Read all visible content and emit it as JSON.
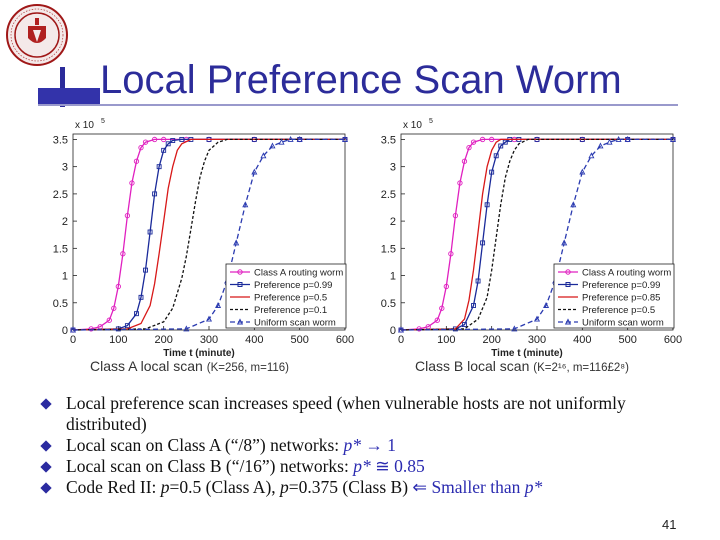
{
  "slide": {
    "title": "Local Preference Scan Worm",
    "page_number": "41",
    "captions": [
      {
        "main": "Class A local scan ",
        "small": "(K=256, m=116)"
      },
      {
        "main": "Class B local scan ",
        "small": "(K=2¹⁶, m=116£2⁸)"
      }
    ],
    "bullets": [
      [
        {
          "text": "Local preference scan increases speed (when vulnerable hosts are not uniformly distributed)"
        }
      ],
      [
        {
          "text": "Local scan on Class A (“/8”) networks: "
        },
        {
          "text": "p* ",
          "style": "blue-italic"
        },
        {
          "text": "→ 1",
          "style": "blue"
        }
      ],
      [
        {
          "text": "Local scan on Class B (“/16”) networks:  "
        },
        {
          "text": "p* ",
          "style": "blue-italic"
        },
        {
          "text": "≅  0.85",
          "style": "blue"
        }
      ],
      [
        {
          "text": "Code Red II: "
        },
        {
          "text": "p",
          "style": "italic"
        },
        {
          "text": "=0.5 (Class A), "
        },
        {
          "text": "p",
          "style": "italic"
        },
        {
          "text": "=0.375 (Class B)  "
        },
        {
          "text": "⇐ Smaller than ",
          "style": "blue"
        },
        {
          "text": "p*",
          "style": "blue-italic"
        }
      ]
    ]
  },
  "chart_data": [
    {
      "type": "line",
      "xlabel": "Time t (minute)",
      "y_multiplier_label": "x 10",
      "y_multiplier_exp": "5",
      "xlim": [
        0,
        600
      ],
      "ylim": [
        0,
        3.6
      ],
      "xticks": [
        0,
        100,
        200,
        300,
        400,
        500,
        600
      ],
      "yticks": [
        "0",
        "0.5",
        "1",
        "1.5",
        "2",
        "2.5",
        "3",
        "3.5"
      ],
      "ytick_values": [
        0,
        0.5,
        1,
        1.5,
        2,
        2.5,
        3,
        3.5
      ],
      "legend_position": "lower-right",
      "series": [
        {
          "name": "Class A routing worm",
          "color": "#e020c0",
          "marker": "circle",
          "dash": "",
          "x": [
            0,
            40,
            60,
            80,
            90,
            100,
            110,
            120,
            130,
            140,
            150,
            160,
            180,
            200,
            250,
            300,
            400,
            500,
            600
          ],
          "y": [
            0,
            0.02,
            0.06,
            0.18,
            0.4,
            0.8,
            1.4,
            2.1,
            2.7,
            3.1,
            3.35,
            3.45,
            3.5,
            3.5,
            3.5,
            3.5,
            3.5,
            3.5,
            3.5
          ]
        },
        {
          "name": "Preference p=0.99",
          "color": "#1a2a9a",
          "marker": "square",
          "dash": "",
          "x": [
            0,
            100,
            120,
            140,
            150,
            160,
            170,
            180,
            190,
            200,
            210,
            220,
            240,
            260,
            300,
            400,
            500,
            600
          ],
          "y": [
            0,
            0.02,
            0.08,
            0.3,
            0.6,
            1.1,
            1.8,
            2.5,
            3.0,
            3.3,
            3.42,
            3.48,
            3.5,
            3.5,
            3.5,
            3.5,
            3.5,
            3.5
          ]
        },
        {
          "name": "Preference p=0.5",
          "color": "#d81818",
          "marker": "",
          "dash": "",
          "x": [
            0,
            120,
            150,
            170,
            180,
            190,
            200,
            210,
            220,
            230,
            240,
            260,
            300,
            400,
            500,
            600
          ],
          "y": [
            0,
            0.02,
            0.12,
            0.45,
            0.85,
            1.4,
            2.0,
            2.6,
            3.0,
            3.3,
            3.42,
            3.5,
            3.5,
            3.5,
            3.5,
            3.5
          ]
        },
        {
          "name": "Preference p=0.1",
          "color": "#111111",
          "marker": "",
          "dash": "3,2",
          "x": [
            0,
            160,
            200,
            220,
            240,
            250,
            260,
            270,
            280,
            290,
            300,
            320,
            340,
            400,
            500,
            600
          ],
          "y": [
            0,
            0.02,
            0.15,
            0.4,
            0.95,
            1.35,
            1.85,
            2.35,
            2.8,
            3.1,
            3.3,
            3.45,
            3.5,
            3.5,
            3.5,
            3.5
          ]
        },
        {
          "name": "Uniform scan worm",
          "color": "#2a3ab0",
          "marker": "triangle",
          "dash": "5,3",
          "x": [
            0,
            250,
            300,
            320,
            340,
            360,
            380,
            400,
            420,
            440,
            460,
            480,
            500,
            600
          ],
          "y": [
            0,
            0.02,
            0.2,
            0.45,
            0.9,
            1.6,
            2.3,
            2.9,
            3.2,
            3.38,
            3.45,
            3.5,
            3.5,
            3.5
          ]
        }
      ]
    },
    {
      "type": "line",
      "xlabel": "Time t (minute)",
      "y_multiplier_label": "x 10",
      "y_multiplier_exp": "5",
      "xlim": [
        0,
        600
      ],
      "ylim": [
        0,
        3.6
      ],
      "xticks": [
        0,
        100,
        200,
        300,
        400,
        500,
        600
      ],
      "yticks": [
        "0",
        "0.5",
        "1",
        "1.5",
        "2",
        "2.5",
        "3",
        "3.5"
      ],
      "ytick_values": [
        0,
        0.5,
        1,
        1.5,
        2,
        2.5,
        3,
        3.5
      ],
      "legend_position": "lower-right",
      "series": [
        {
          "name": "Class A routing worm",
          "color": "#e020c0",
          "marker": "circle",
          "dash": "",
          "x": [
            0,
            40,
            60,
            80,
            90,
            100,
            110,
            120,
            130,
            140,
            150,
            160,
            180,
            200,
            250,
            300,
            400,
            500,
            600
          ],
          "y": [
            0,
            0.02,
            0.06,
            0.18,
            0.4,
            0.8,
            1.4,
            2.1,
            2.7,
            3.1,
            3.35,
            3.45,
            3.5,
            3.5,
            3.5,
            3.5,
            3.5,
            3.5,
            3.5
          ]
        },
        {
          "name": "Preference p=0.99",
          "color": "#1a2a9a",
          "marker": "square",
          "dash": "",
          "x": [
            0,
            120,
            140,
            160,
            170,
            180,
            190,
            200,
            210,
            220,
            230,
            240,
            260,
            300,
            400,
            500,
            600
          ],
          "y": [
            0,
            0.02,
            0.1,
            0.45,
            0.9,
            1.6,
            2.3,
            2.9,
            3.2,
            3.38,
            3.45,
            3.5,
            3.5,
            3.5,
            3.5,
            3.5,
            3.5
          ]
        },
        {
          "name": "Preference p=0.85",
          "color": "#d81818",
          "marker": "",
          "dash": "",
          "x": [
            0,
            120,
            140,
            150,
            160,
            170,
            180,
            190,
            200,
            210,
            220,
            240,
            300,
            400,
            500,
            600
          ],
          "y": [
            0,
            0.02,
            0.2,
            0.55,
            1.1,
            1.8,
            2.5,
            3.0,
            3.3,
            3.45,
            3.5,
            3.5,
            3.5,
            3.5,
            3.5,
            3.5
          ]
        },
        {
          "name": "Preference p=0.5",
          "color": "#111111",
          "marker": "",
          "dash": "3,2",
          "x": [
            0,
            140,
            170,
            190,
            200,
            210,
            220,
            230,
            240,
            250,
            260,
            280,
            300,
            400,
            500,
            600
          ],
          "y": [
            0,
            0.02,
            0.2,
            0.6,
            1.1,
            1.7,
            2.3,
            2.8,
            3.1,
            3.3,
            3.42,
            3.5,
            3.5,
            3.5,
            3.5,
            3.5
          ]
        },
        {
          "name": "Uniform scan worm",
          "color": "#2a3ab0",
          "marker": "triangle",
          "dash": "5,3",
          "x": [
            0,
            250,
            300,
            320,
            340,
            360,
            380,
            400,
            420,
            440,
            460,
            480,
            500,
            600
          ],
          "y": [
            0,
            0.02,
            0.2,
            0.45,
            0.9,
            1.6,
            2.3,
            2.9,
            3.2,
            3.38,
            3.45,
            3.5,
            3.5,
            3.5
          ]
        }
      ]
    }
  ]
}
